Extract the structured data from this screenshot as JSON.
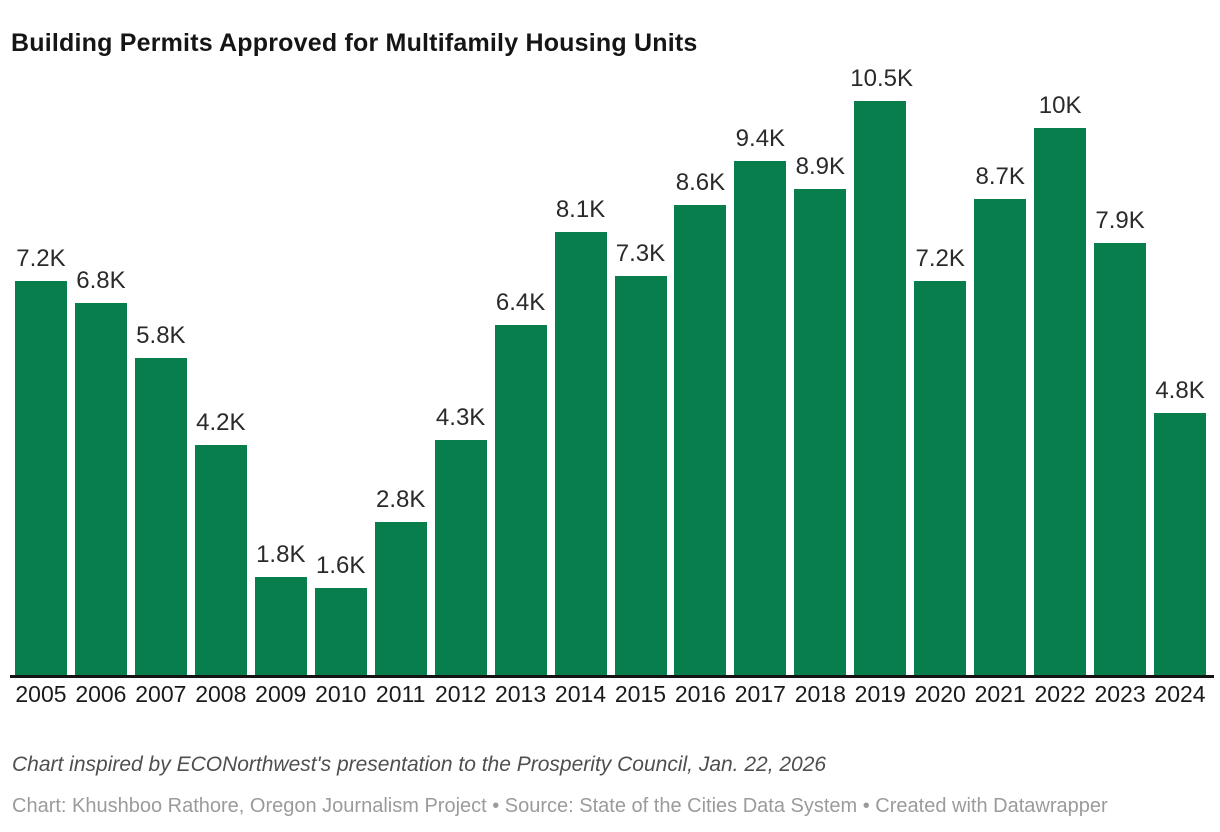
{
  "title": "Building Permits Approved for Multifamily Housing Units",
  "chart_data": {
    "type": "bar",
    "title": "Building Permits Approved for Multifamily Housing Units",
    "categories": [
      "2005",
      "2006",
      "2007",
      "2008",
      "2009",
      "2010",
      "2011",
      "2012",
      "2013",
      "2014",
      "2015",
      "2016",
      "2017",
      "2018",
      "2019",
      "2020",
      "2021",
      "2022",
      "2023",
      "2024"
    ],
    "values": [
      7200,
      6800,
      5800,
      4200,
      1800,
      1600,
      2800,
      4300,
      6400,
      8100,
      7300,
      8600,
      9400,
      8900,
      10500,
      7200,
      8700,
      10000,
      7900,
      4800
    ],
    "value_labels": [
      "7.2K",
      "6.8K",
      "5.8K",
      "4.2K",
      "1.8K",
      "1.6K",
      "2.8K",
      "4.3K",
      "6.4K",
      "8.1K",
      "7.3K",
      "8.6K",
      "9.4K",
      "8.9K",
      "10.5K",
      "7.2K",
      "8.7K",
      "10K",
      "7.9K",
      "4.8K"
    ],
    "xlabel": "",
    "ylabel": "",
    "ylim": [
      0,
      10500
    ],
    "grid": false,
    "legend": false,
    "bar_color": "#087e4c",
    "axis_color": "#141414"
  },
  "footnote": "Chart inspired by ECONorthwest's presentation to the Prosperity Council, Jan. 22, 2026",
  "credit": "Chart: Khushboo Rathore, Oregon Journalism Project • Source: State of the Cities Data System • Created with Datawrapper"
}
